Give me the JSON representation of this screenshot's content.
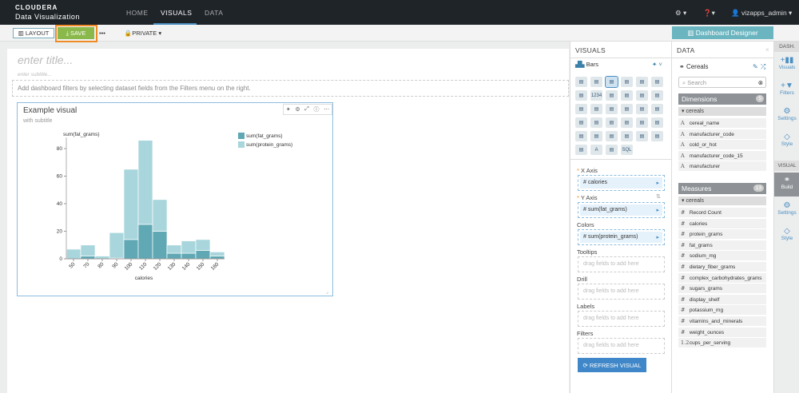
{
  "header": {
    "brand": "CLOUDERA",
    "product": "Data Visualization",
    "nav": [
      "HOME",
      "VISUALS",
      "DATA"
    ],
    "settings_icon": "gear-icon",
    "help_icon": "help-icon",
    "user": "vizapps_admin"
  },
  "toolbar": {
    "layout": "LAYOUT",
    "save": "SAVE",
    "more": "•••",
    "privacy": "PRIVATE",
    "designer": "Dashboard Designer"
  },
  "dashboard": {
    "title_placeholder": "enter title...",
    "subtitle_placeholder": "enter subtitle...",
    "filter_hint": "Add dashboard filters by selecting dataset fields from the Filters menu on the right."
  },
  "visual": {
    "title": "Example visual",
    "subtitle": "with subtitle"
  },
  "chart_data": {
    "type": "bar",
    "stacked": true,
    "categories": [
      "50",
      "70",
      "80",
      "90",
      "100",
      "110",
      "120",
      "130",
      "140",
      "150",
      "160"
    ],
    "series": [
      {
        "name": "sum(fat_grams)",
        "color": "#5fa8b4",
        "values": [
          0,
          2,
          0,
          0.5,
          14,
          25,
          20,
          4,
          4,
          6,
          2
        ]
      },
      {
        "name": "sum(protein_grams)",
        "color": "#a8d6dc",
        "values": [
          7,
          8,
          2,
          18.5,
          51,
          61,
          23,
          6,
          9,
          8,
          3
        ]
      }
    ],
    "ylabel": "sum(fat_grams)",
    "xlabel": "calories",
    "yticks": [
      0,
      20,
      40,
      60,
      80
    ],
    "ylim": [
      0,
      88
    ],
    "legend": "top-right"
  },
  "visuals_panel": {
    "title": "VISUALS",
    "type": "Bars",
    "x_axis_label": "X Axis",
    "x_axis": "calories",
    "y_axis_label": "Y Axis",
    "y_axis": "sum(fat_grams)",
    "colors_label": "Colors",
    "colors": "sum(protein_grams)",
    "tooltips_label": "Tooltips",
    "drill_label": "Drill",
    "labels_label": "Labels",
    "filters_label": "Filters",
    "drop_hint": "drag fields to add here",
    "refresh": "REFRESH VISUAL",
    "hash": "#",
    "req": "*",
    "number_icon_text": "1234",
    "sql_icon_text": "SQL",
    "text_icon_text": "A"
  },
  "data_panel": {
    "title": "DATA",
    "dataset": "Cereals",
    "search_placeholder": "Search",
    "dimensions_label": "Dimensions",
    "dimensions_count": "5",
    "measures_label": "Measures",
    "measures_count": "13",
    "group": "cereals",
    "dimensions": [
      "cereal_name",
      "manufacturer_code",
      "cold_or_hot",
      "manufacturer_code_15",
      "manufacturer"
    ],
    "measures": [
      {
        "t": "#",
        "n": "Record Count"
      },
      {
        "t": "#",
        "n": "calories"
      },
      {
        "t": "#",
        "n": "protein_grams"
      },
      {
        "t": "#",
        "n": "fat_grams"
      },
      {
        "t": "#",
        "n": "sodium_mg"
      },
      {
        "t": "#",
        "n": "dietary_fiber_grams"
      },
      {
        "t": "#",
        "n": "complex_carbohydrates_grams"
      },
      {
        "t": "#",
        "n": "sugars_grams"
      },
      {
        "t": "#",
        "n": "display_shelf"
      },
      {
        "t": "#",
        "n": "potassium_mg"
      },
      {
        "t": "#",
        "n": "vitamins_and_minerals"
      },
      {
        "t": "#",
        "n": "weight_ounces"
      },
      {
        "t": "1.2",
        "n": "cups_per_serving"
      }
    ]
  },
  "rail": {
    "dash": "DASH.",
    "visuals": "Visuals",
    "filters": "Filters",
    "settings": "Settings",
    "style": "Style",
    "visual": "VISUAL",
    "build": "Build",
    "settings2": "Settings",
    "style2": "Style"
  }
}
